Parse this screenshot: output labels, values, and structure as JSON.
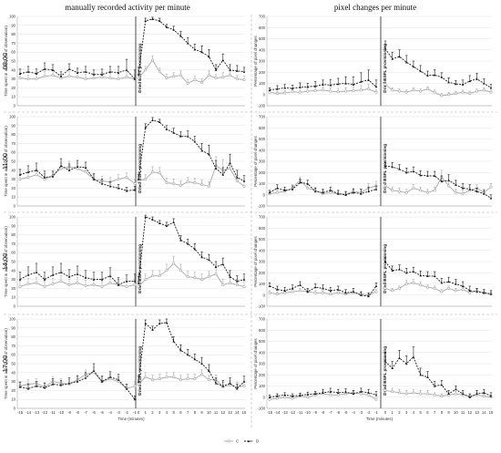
{
  "chart_data": {
    "type": "line",
    "col_titles": [
      "manually recorded activity per minute",
      "pixel changes per minute"
    ],
    "row_labels": [
      "08:00",
      "11:00",
      "14:00",
      "17:00"
    ],
    "left_ylabel": "Time spent in activity (% of observation)",
    "right_ylabel": "Percentage of pixel changes",
    "vline_label": "Dried BSFL provisioning",
    "xlabel": "Time (minutes)",
    "x_pre": [
      -15,
      -14,
      -13,
      -12,
      -11,
      -10,
      -9,
      -8,
      -7,
      -6,
      -5,
      -4,
      -3,
      -2,
      -1
    ],
    "x_post": [
      0,
      1,
      2,
      3,
      4,
      5,
      6,
      7,
      8,
      9,
      10,
      11,
      12,
      13,
      14,
      15
    ],
    "left_yticks": [
      0,
      10,
      20,
      30,
      40,
      50,
      60,
      70,
      80,
      90,
      100
    ],
    "left_ylim": [
      0,
      100
    ],
    "right_yticks": [
      -100,
      0,
      100,
      200,
      300,
      400,
      500,
      600,
      700
    ],
    "right_ylim": [
      -100,
      700
    ],
    "legend": [
      "C",
      "D"
    ],
    "colors": {
      "C": "#a8a8a8",
      "D": "#1a1a1a",
      "grid": "#e4e4e4",
      "sep": "#b0b0b0"
    },
    "panels": [
      {
        "row": "08:00",
        "measure": "activity",
        "D": [
          36,
          38,
          36,
          41,
          40,
          33,
          41,
          37,
          38,
          35,
          35,
          38,
          37,
          40,
          30,
          35,
          95,
          97,
          95,
          88,
          85,
          78,
          70,
          63,
          60,
          55,
          40,
          51,
          40,
          39,
          38
        ],
        "C": [
          31,
          30,
          30,
          33,
          34,
          31,
          33,
          32,
          30,
          31,
          32,
          31,
          30,
          32,
          30,
          31,
          40,
          51,
          38,
          31,
          33,
          34,
          25,
          29,
          26,
          34,
          31,
          32,
          34,
          30,
          29
        ],
        "D_err": [
          5,
          6,
          5,
          7,
          6,
          5,
          6,
          5,
          6,
          5,
          6,
          6,
          7,
          12,
          10,
          8,
          3,
          2,
          3,
          3,
          4,
          5,
          6,
          6,
          7,
          8,
          6,
          7,
          6,
          6,
          5
        ],
        "C_err": [
          4,
          4,
          5,
          5,
          5,
          4,
          5,
          4,
          5,
          4,
          5,
          5,
          5,
          6,
          5,
          4,
          4,
          5,
          4,
          4,
          4,
          5,
          4,
          4,
          4,
          5,
          4,
          5,
          4,
          4,
          4
        ]
      },
      {
        "row": "08:00",
        "measure": "pixel",
        "D": [
          40,
          50,
          60,
          55,
          65,
          70,
          75,
          90,
          85,
          95,
          100,
          90,
          115,
          130,
          70,
          410,
          320,
          340,
          290,
          250,
          210,
          170,
          175,
          155,
          110,
          95,
          90,
          120,
          140,
          100,
          60
        ],
        "C": [
          20,
          10,
          15,
          25,
          20,
          30,
          35,
          40,
          30,
          25,
          30,
          35,
          40,
          50,
          20,
          90,
          40,
          30,
          20,
          40,
          30,
          50,
          20,
          -10,
          0,
          10,
          20,
          10,
          30,
          40,
          20
        ],
        "D_err": [
          20,
          30,
          30,
          30,
          40,
          30,
          40,
          40,
          50,
          50,
          60,
          70,
          80,
          90,
          60,
          70,
          60,
          60,
          60,
          50,
          50,
          40,
          50,
          40,
          40,
          30,
          40,
          50,
          50,
          40,
          30
        ],
        "C_err": [
          20,
          20,
          20,
          20,
          20,
          30,
          30,
          30,
          30,
          30,
          30,
          30,
          40,
          40,
          20,
          30,
          20,
          20,
          20,
          20,
          20,
          20,
          20,
          20,
          20,
          20,
          20,
          20,
          20,
          20,
          20
        ]
      },
      {
        "row": "11:00",
        "measure": "activity",
        "D": [
          35,
          38,
          40,
          32,
          33,
          45,
          40,
          44,
          43,
          30,
          25,
          22,
          20,
          17,
          18,
          30,
          88,
          96,
          94,
          86,
          82,
          78,
          78,
          72,
          62,
          58,
          42,
          35,
          48,
          32,
          28
        ],
        "C": [
          30,
          32,
          35,
          30,
          34,
          42,
          44,
          42,
          38,
          30,
          28,
          27,
          30,
          32,
          25,
          28,
          30,
          38,
          37,
          26,
          25,
          23,
          27,
          26,
          24,
          22,
          45,
          40,
          42,
          28,
          22
        ],
        "D_err": [
          6,
          7,
          8,
          7,
          6,
          8,
          7,
          7,
          6,
          6,
          5,
          5,
          4,
          4,
          4,
          5,
          4,
          3,
          3,
          4,
          5,
          5,
          6,
          6,
          8,
          10,
          9,
          8,
          10,
          8,
          6
        ],
        "C_err": [
          5,
          6,
          6,
          6,
          5,
          6,
          6,
          6,
          5,
          5,
          5,
          5,
          5,
          5,
          5,
          5,
          5,
          6,
          6,
          5,
          5,
          5,
          5,
          5,
          5,
          5,
          10,
          12,
          10,
          6,
          5
        ]
      },
      {
        "row": "11:00",
        "measure": "pixel",
        "D": [
          20,
          60,
          40,
          50,
          110,
          100,
          30,
          20,
          40,
          10,
          0,
          20,
          10,
          30,
          50,
          260,
          250,
          230,
          200,
          210,
          175,
          170,
          170,
          120,
          130,
          90,
          60,
          50,
          30,
          10,
          -30
        ],
        "C": [
          10,
          20,
          30,
          60,
          130,
          60,
          40,
          10,
          20,
          10,
          5,
          30,
          20,
          60,
          80,
          80,
          40,
          30,
          20,
          60,
          40,
          20,
          40,
          160,
          80,
          20,
          10,
          40,
          60,
          20,
          70
        ],
        "D_err": [
          20,
          30,
          30,
          30,
          30,
          30,
          30,
          30,
          30,
          30,
          30,
          30,
          40,
          40,
          30,
          30,
          40,
          40,
          40,
          40,
          40,
          40,
          40,
          50,
          50,
          40,
          40,
          40,
          30,
          30,
          30
        ],
        "C_err": [
          20,
          20,
          20,
          30,
          30,
          30,
          30,
          30,
          30,
          20,
          20,
          30,
          30,
          40,
          40,
          30,
          30,
          30,
          30,
          30,
          30,
          30,
          30,
          60,
          40,
          30,
          30,
          30,
          30,
          30,
          30
        ]
      },
      {
        "row": "14:00",
        "measure": "activity",
        "D": [
          30,
          35,
          38,
          30,
          35,
          38,
          33,
          36,
          32,
          30,
          30,
          34,
          24,
          28,
          28,
          26,
          100,
          97,
          93,
          90,
          94,
          74,
          70,
          64,
          55,
          52,
          44,
          47,
          33,
          28,
          30
        ],
        "C": [
          22,
          25,
          26,
          22,
          25,
          28,
          24,
          26,
          23,
          24,
          22,
          26,
          24,
          22,
          24,
          22,
          30,
          34,
          34,
          40,
          48,
          40,
          33,
          32,
          30,
          33,
          36,
          24,
          26,
          24,
          22
        ],
        "D_err": [
          8,
          9,
          10,
          8,
          9,
          10,
          8,
          9,
          8,
          8,
          8,
          9,
          8,
          7,
          8,
          7,
          2,
          3,
          3,
          4,
          4,
          5,
          5,
          6,
          6,
          6,
          6,
          7,
          7,
          6,
          6
        ],
        "C_err": [
          6,
          6,
          6,
          6,
          6,
          6,
          6,
          6,
          6,
          6,
          6,
          6,
          6,
          6,
          6,
          6,
          6,
          6,
          6,
          7,
          8,
          7,
          6,
          6,
          6,
          6,
          7,
          6,
          6,
          6,
          6
        ]
      },
      {
        "row": "14:00",
        "measure": "pixel",
        "D": [
          80,
          50,
          40,
          60,
          90,
          30,
          70,
          60,
          40,
          50,
          20,
          30,
          0,
          -10,
          80,
          300,
          220,
          230,
          200,
          210,
          175,
          170,
          170,
          110,
          120,
          100,
          80,
          40,
          30,
          20,
          10
        ],
        "C": [
          20,
          10,
          20,
          30,
          40,
          30,
          20,
          20,
          10,
          20,
          10,
          20,
          10,
          0,
          30,
          60,
          40,
          60,
          100,
          110,
          90,
          70,
          60,
          30,
          60,
          40,
          50,
          20,
          40,
          20,
          10
        ],
        "D_err": [
          30,
          30,
          30,
          30,
          30,
          30,
          30,
          30,
          30,
          30,
          30,
          30,
          30,
          30,
          30,
          40,
          40,
          40,
          40,
          40,
          40,
          40,
          40,
          40,
          40,
          40,
          40,
          40,
          30,
          30,
          30
        ],
        "C_err": [
          20,
          20,
          20,
          20,
          20,
          20,
          20,
          20,
          20,
          20,
          20,
          20,
          20,
          20,
          20,
          20,
          20,
          20,
          30,
          30,
          30,
          20,
          20,
          20,
          20,
          20,
          20,
          20,
          20,
          20,
          20
        ]
      },
      {
        "row": "17:00",
        "measure": "activity",
        "D": [
          24,
          22,
          25,
          23,
          27,
          26,
          28,
          30,
          34,
          42,
          30,
          35,
          32,
          22,
          10,
          30,
          95,
          88,
          95,
          96,
          75,
          65,
          60,
          55,
          50,
          42,
          28,
          25,
          28,
          22,
          30
        ],
        "C": [
          25,
          27,
          28,
          24,
          30,
          28,
          27,
          32,
          38,
          40,
          30,
          33,
          30,
          22,
          25,
          27,
          35,
          32,
          33,
          35,
          35,
          32,
          33,
          33,
          38,
          32,
          32,
          24,
          26,
          24,
          25
        ],
        "D_err": [
          5,
          5,
          5,
          5,
          6,
          5,
          6,
          6,
          6,
          8,
          6,
          6,
          6,
          5,
          4,
          6,
          4,
          4,
          4,
          4,
          5,
          6,
          6,
          6,
          7,
          7,
          6,
          6,
          6,
          5,
          6
        ],
        "C_err": [
          5,
          5,
          5,
          5,
          5,
          5,
          5,
          5,
          5,
          6,
          5,
          5,
          5,
          5,
          5,
          5,
          5,
          5,
          5,
          5,
          5,
          5,
          5,
          5,
          5,
          5,
          5,
          5,
          5,
          5,
          5
        ]
      },
      {
        "row": "17:00",
        "measure": "pixel",
        "D": [
          0,
          10,
          20,
          10,
          15,
          25,
          30,
          40,
          50,
          40,
          45,
          30,
          50,
          40,
          20,
          320,
          260,
          350,
          300,
          360,
          200,
          180,
          100,
          110,
          30,
          70,
          30,
          0,
          30,
          40,
          10
        ],
        "C": [
          -20,
          -10,
          0,
          -10,
          10,
          0,
          20,
          30,
          20,
          20,
          30,
          40,
          30,
          20,
          -20,
          60,
          50,
          40,
          30,
          40,
          30,
          30,
          20,
          10,
          20,
          30,
          20,
          10,
          20,
          10,
          0
        ],
        "D_err": [
          20,
          20,
          20,
          20,
          20,
          20,
          20,
          30,
          30,
          30,
          30,
          30,
          30,
          30,
          30,
          80,
          60,
          70,
          70,
          90,
          60,
          50,
          40,
          40,
          30,
          30,
          30,
          30,
          30,
          30,
          30
        ],
        "C_err": [
          20,
          20,
          20,
          20,
          20,
          20,
          20,
          20,
          20,
          20,
          20,
          20,
          20,
          20,
          20,
          30,
          30,
          30,
          30,
          30,
          30,
          30,
          20,
          20,
          20,
          20,
          20,
          20,
          20,
          20,
          20
        ]
      }
    ]
  }
}
